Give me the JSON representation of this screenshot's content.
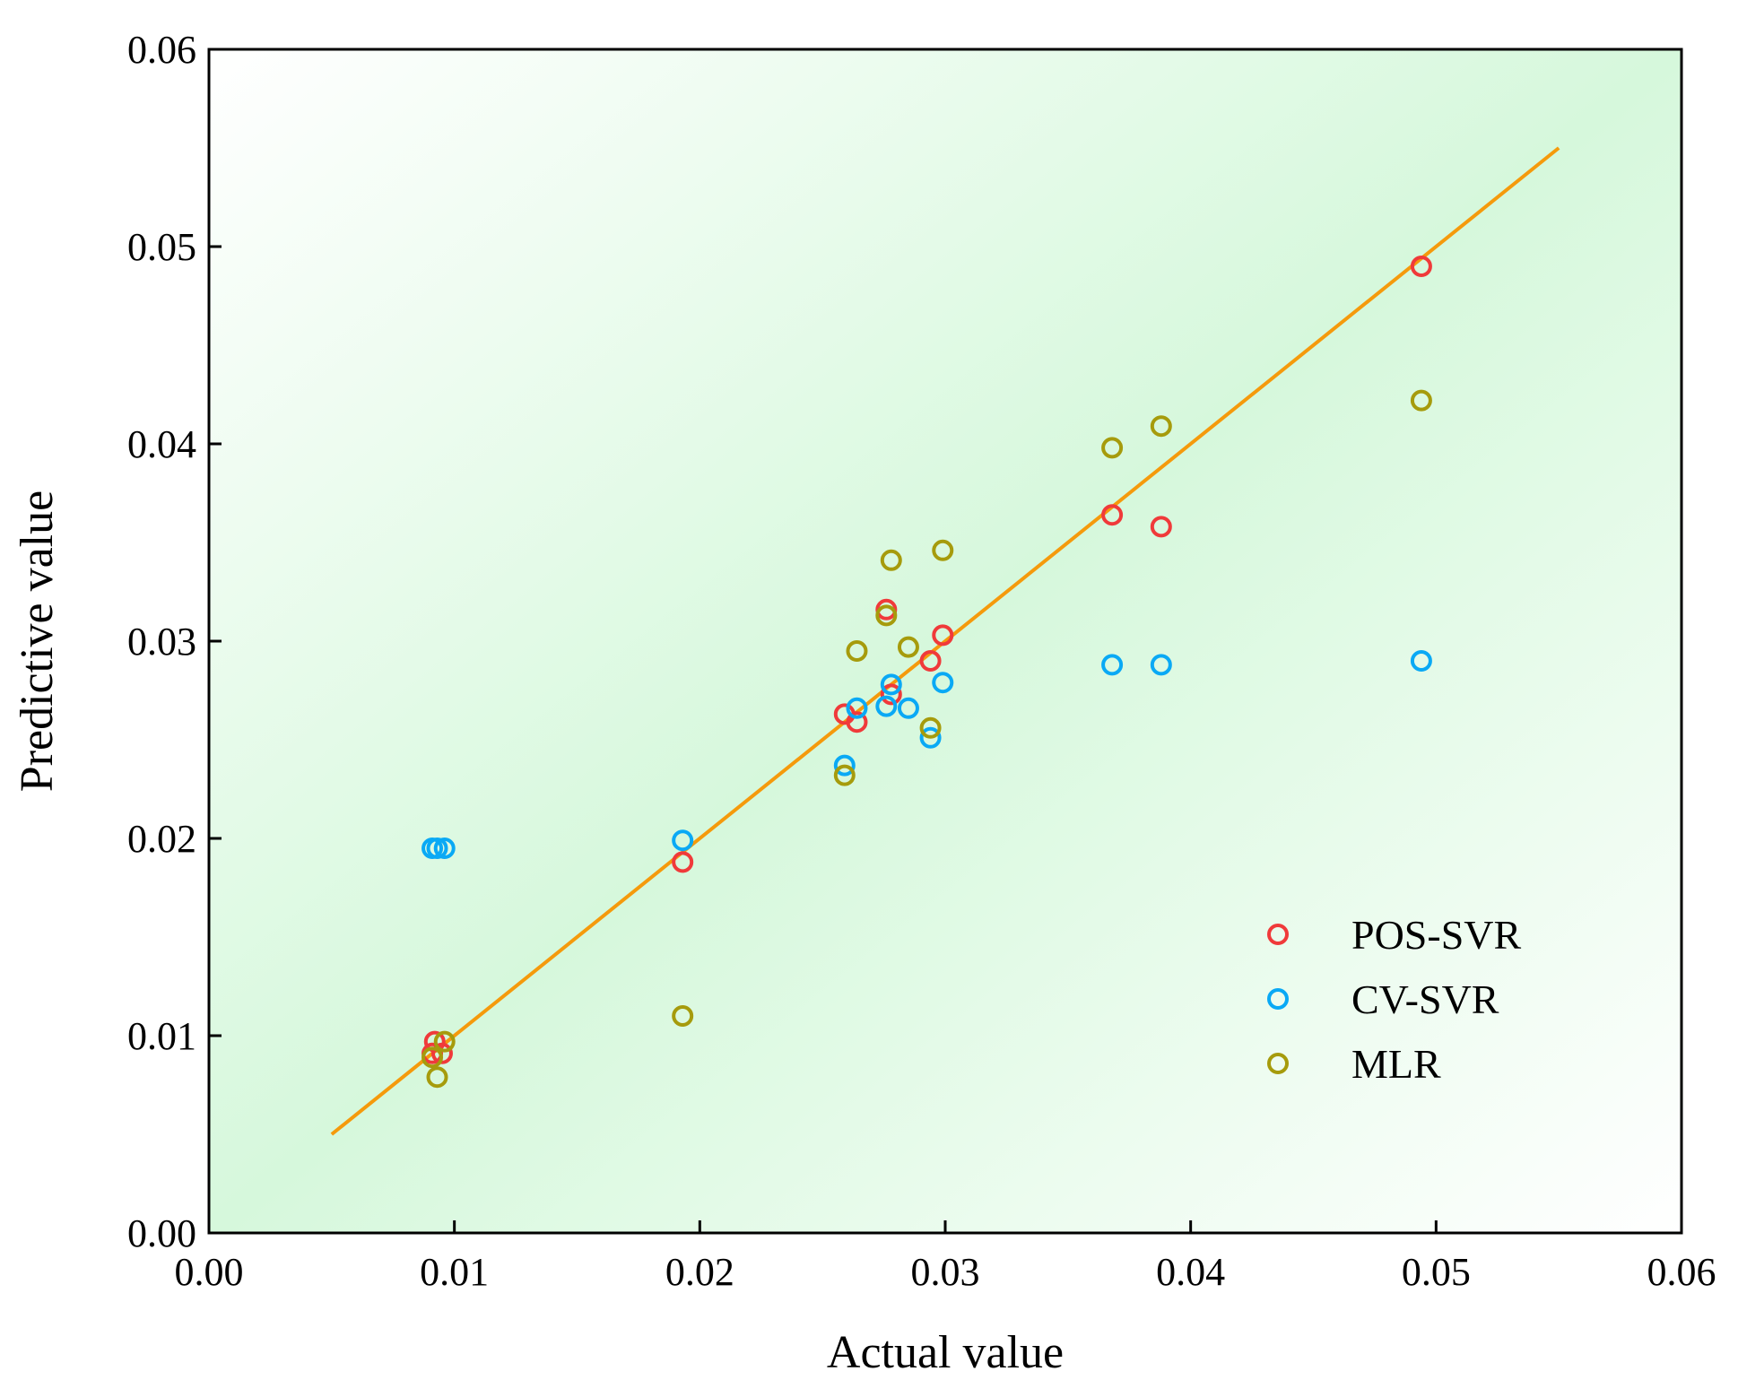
{
  "colors": {
    "pos_svr": "#f03a3a",
    "cv_svr": "#0aa9f5",
    "mlr": "#a69b0c",
    "fit_line": "#f59a0c",
    "bg_light": "#ffffff",
    "bg_green": "#d6f8dc"
  },
  "chart_data": {
    "type": "scatter",
    "title": "",
    "xlabel": "Actual value",
    "ylabel": "Predictive value",
    "xlim": [
      0,
      0.06
    ],
    "ylim": [
      0,
      0.06
    ],
    "xticks": [
      "0.00",
      "0.01",
      "0.02",
      "0.03",
      "0.04",
      "0.05",
      "0.06"
    ],
    "yticks": [
      "0.00",
      "0.01",
      "0.02",
      "0.03",
      "0.04",
      "0.05",
      "0.06"
    ],
    "grid": false,
    "legend_position": "lower-right",
    "reference_line": {
      "x": [
        0.005,
        0.055
      ],
      "y": [
        0.005,
        0.055
      ]
    },
    "series": [
      {
        "name": "POS-SVR",
        "color": "#f03a3a",
        "points": [
          [
            0.0091,
            0.0091
          ],
          [
            0.0092,
            0.0097
          ],
          [
            0.0095,
            0.0091
          ],
          [
            0.0193,
            0.0188
          ],
          [
            0.0259,
            0.0263
          ],
          [
            0.0264,
            0.0259
          ],
          [
            0.0276,
            0.0316
          ],
          [
            0.0278,
            0.0273
          ],
          [
            0.0294,
            0.029
          ],
          [
            0.0299,
            0.0303
          ],
          [
            0.0368,
            0.0364
          ],
          [
            0.0388,
            0.0358
          ],
          [
            0.0494,
            0.049
          ]
        ]
      },
      {
        "name": "CV-SVR",
        "color": "#0aa9f5",
        "points": [
          [
            0.0091,
            0.0195
          ],
          [
            0.0093,
            0.0195
          ],
          [
            0.0096,
            0.0195
          ],
          [
            0.0193,
            0.0199
          ],
          [
            0.0259,
            0.0237
          ],
          [
            0.0264,
            0.0266
          ],
          [
            0.0276,
            0.0267
          ],
          [
            0.0278,
            0.0278
          ],
          [
            0.0285,
            0.0266
          ],
          [
            0.0294,
            0.0251
          ],
          [
            0.0299,
            0.0279
          ],
          [
            0.0368,
            0.0288
          ],
          [
            0.0388,
            0.0288
          ],
          [
            0.0494,
            0.029
          ]
        ]
      },
      {
        "name": "MLR",
        "color": "#a69b0c",
        "points": [
          [
            0.0091,
            0.0089
          ],
          [
            0.0093,
            0.0079
          ],
          [
            0.0096,
            0.0097
          ],
          [
            0.0193,
            0.011
          ],
          [
            0.0259,
            0.0232
          ],
          [
            0.0264,
            0.0295
          ],
          [
            0.0276,
            0.0313
          ],
          [
            0.0278,
            0.0341
          ],
          [
            0.0285,
            0.0297
          ],
          [
            0.0294,
            0.0256
          ],
          [
            0.0299,
            0.0346
          ],
          [
            0.0368,
            0.0398
          ],
          [
            0.0388,
            0.0409
          ],
          [
            0.0494,
            0.0422
          ]
        ]
      }
    ]
  }
}
